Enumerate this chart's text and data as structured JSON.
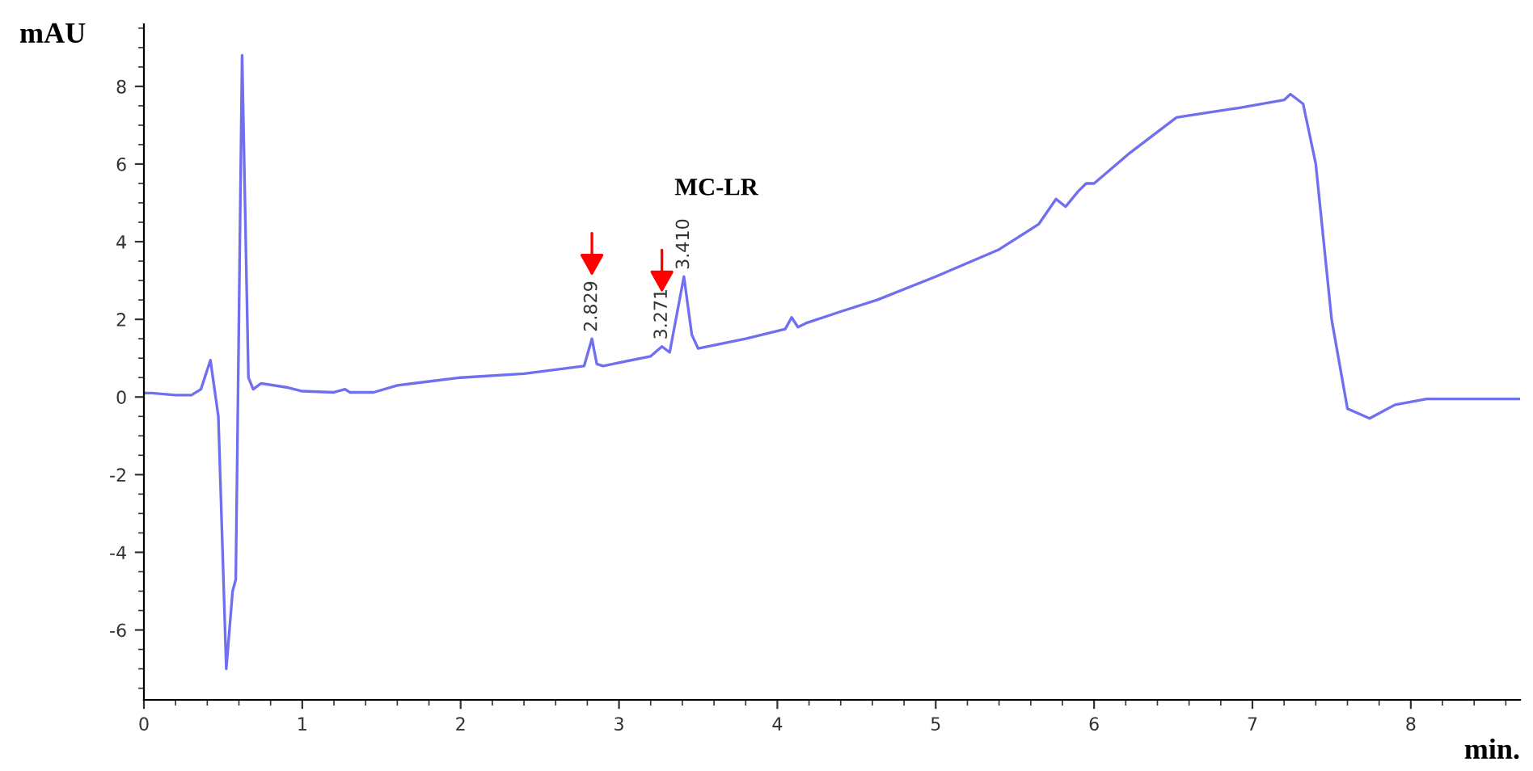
{
  "chart_data": {
    "type": "line",
    "xlabel": "min.",
    "ylabel": "mAU",
    "x": [
      0,
      0.05,
      0.2,
      0.3,
      0.36,
      0.42,
      0.47,
      0.52,
      0.56,
      0.58,
      0.62,
      0.66,
      0.69,
      0.74,
      0.9,
      1.0,
      1.2,
      1.27,
      1.3,
      1.45,
      1.6,
      1.8,
      2.0,
      2.4,
      2.78,
      2.829,
      2.86,
      2.9,
      3.2,
      3.271,
      3.32,
      3.41,
      3.46,
      3.5,
      3.8,
      4.05,
      4.09,
      4.13,
      4.18,
      4.4,
      4.63,
      5.0,
      5.4,
      5.65,
      5.76,
      5.82,
      5.9,
      5.95,
      6.0,
      6.23,
      6.52,
      6.6,
      6.92,
      7.2,
      7.24,
      7.32,
      7.4,
      7.5,
      7.6,
      7.74,
      7.9,
      8.1,
      8.69
    ],
    "series": [
      {
        "color": "#6f6ff0",
        "values": [
          0.1,
          0.1,
          0.05,
          0.05,
          0.2,
          0.95,
          -0.5,
          -7.0,
          -5.0,
          -4.7,
          8.8,
          0.5,
          0.2,
          0.35,
          0.25,
          0.15,
          0.12,
          0.2,
          0.12,
          0.12,
          0.3,
          0.4,
          0.5,
          0.6,
          0.8,
          1.5,
          0.85,
          0.8,
          1.05,
          1.3,
          1.15,
          3.1,
          1.6,
          1.25,
          1.5,
          1.75,
          2.05,
          1.8,
          1.9,
          2.2,
          2.5,
          3.1,
          3.8,
          4.45,
          5.1,
          4.9,
          5.3,
          5.5,
          5.5,
          6.3,
          7.2,
          7.25,
          7.45,
          7.65,
          7.8,
          7.55,
          6.0,
          2.0,
          -0.3,
          -0.55,
          -0.2,
          -0.05,
          -0.05
        ]
      }
    ],
    "xlim": [
      0,
      8.69
    ],
    "ylim": [
      -7.8,
      9.6
    ],
    "xticks": [
      0,
      1,
      2,
      3,
      4,
      5,
      6,
      7,
      8
    ],
    "yticks": [
      -6,
      -4,
      -2,
      0,
      2,
      4,
      6,
      8
    ],
    "grid": false,
    "legend": false,
    "marker": "none",
    "line_style": "solid",
    "annotations": [
      {
        "text": "2.829",
        "x": 2.829,
        "y": 1.5
      },
      {
        "text": "3.271",
        "x": 3.271,
        "y": 1.3
      },
      {
        "text": "3.410",
        "x": 3.41,
        "y": 3.1
      },
      "MC-LR"
    ]
  }
}
